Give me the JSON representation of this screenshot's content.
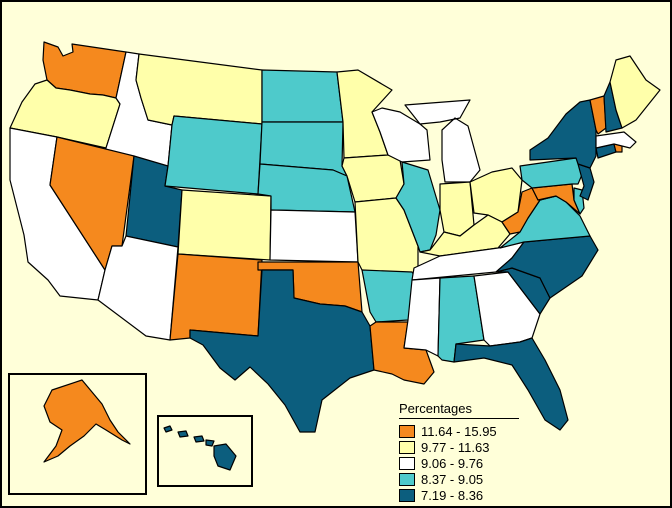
{
  "legend": {
    "title": "Percentages",
    "classes": [
      {
        "label": "11.64 - 15.95",
        "color": "#f5891e"
      },
      {
        "label": "9.77 - 11.63",
        "color": "#ffffaa"
      },
      {
        "label": "9.06 - 9.76",
        "color": "#ffffff"
      },
      {
        "label": "8.37 - 9.05",
        "color": "#4ecacb"
      },
      {
        "label": "7.19 - 8.36",
        "color": "#0c5e7e"
      }
    ]
  },
  "background": "#ffffd9",
  "states": [
    {
      "name": "Washington",
      "class": 0
    },
    {
      "name": "Oregon",
      "class": 1
    },
    {
      "name": "California",
      "class": 2
    },
    {
      "name": "Idaho",
      "class": 2
    },
    {
      "name": "Nevada",
      "class": 0
    },
    {
      "name": "Utah",
      "class": 4
    },
    {
      "name": "Arizona",
      "class": 2
    },
    {
      "name": "Montana",
      "class": 1
    },
    {
      "name": "Wyoming",
      "class": 3
    },
    {
      "name": "Colorado",
      "class": 1
    },
    {
      "name": "New Mexico",
      "class": 0
    },
    {
      "name": "North Dakota",
      "class": 3
    },
    {
      "name": "South Dakota",
      "class": 3
    },
    {
      "name": "Nebraska",
      "class": 3
    },
    {
      "name": "Kansas",
      "class": 2
    },
    {
      "name": "Oklahoma",
      "class": 0
    },
    {
      "name": "Texas",
      "class": 4
    },
    {
      "name": "Minnesota",
      "class": 1
    },
    {
      "name": "Iowa",
      "class": 1
    },
    {
      "name": "Missouri",
      "class": 1
    },
    {
      "name": "Arkansas",
      "class": 3
    },
    {
      "name": "Louisiana",
      "class": 0
    },
    {
      "name": "Wisconsin",
      "class": 2
    },
    {
      "name": "Illinois",
      "class": 3
    },
    {
      "name": "Michigan",
      "class": 2
    },
    {
      "name": "Indiana",
      "class": 1
    },
    {
      "name": "Ohio",
      "class": 1
    },
    {
      "name": "Kentucky",
      "class": 1
    },
    {
      "name": "Tennessee",
      "class": 2
    },
    {
      "name": "Mississippi",
      "class": 2
    },
    {
      "name": "Alabama",
      "class": 3
    },
    {
      "name": "Georgia",
      "class": 2
    },
    {
      "name": "Florida",
      "class": 4
    },
    {
      "name": "South Carolina",
      "class": 4
    },
    {
      "name": "North Carolina",
      "class": 4
    },
    {
      "name": "Virginia",
      "class": 3
    },
    {
      "name": "West Virginia",
      "class": 0
    },
    {
      "name": "Maryland",
      "class": 0
    },
    {
      "name": "Delaware",
      "class": 3
    },
    {
      "name": "Pennsylvania",
      "class": 3
    },
    {
      "name": "New Jersey",
      "class": 4
    },
    {
      "name": "New York",
      "class": 4
    },
    {
      "name": "Connecticut",
      "class": 4
    },
    {
      "name": "Rhode Island",
      "class": 0
    },
    {
      "name": "Massachusetts",
      "class": 2
    },
    {
      "name": "Vermont",
      "class": 0
    },
    {
      "name": "New Hampshire",
      "class": 4
    },
    {
      "name": "Maine",
      "class": 1
    },
    {
      "name": "Alaska",
      "class": 0
    },
    {
      "name": "Hawaii",
      "class": 4
    }
  ]
}
